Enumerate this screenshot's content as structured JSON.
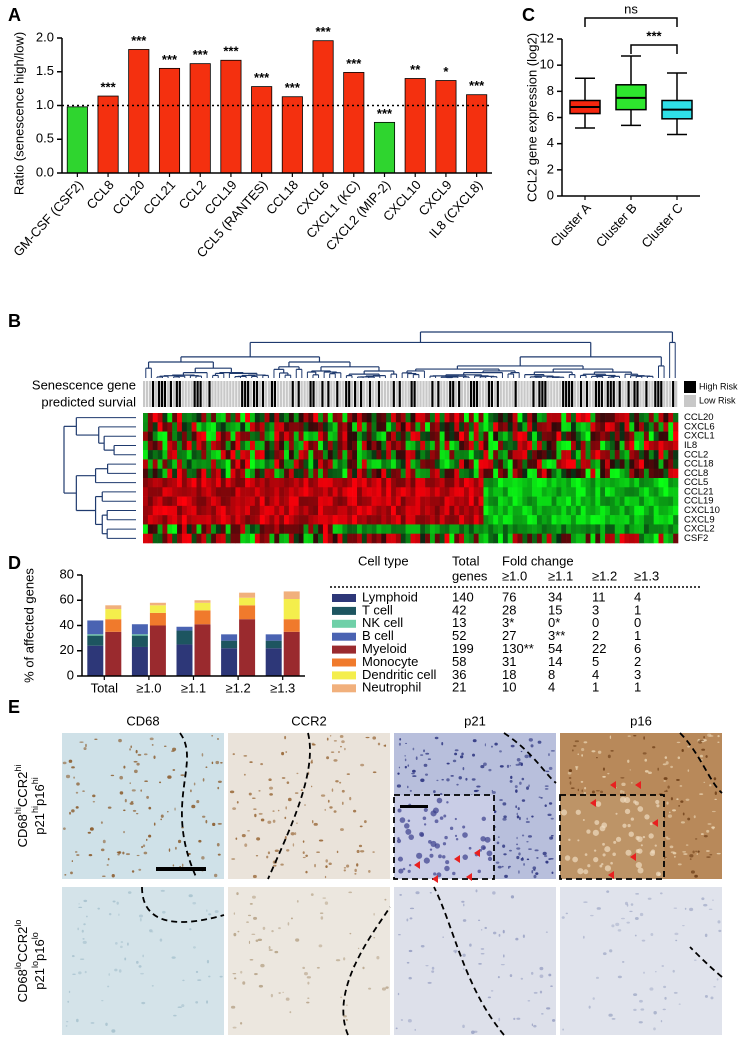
{
  "chart_data": [
    {
      "panel": "A",
      "type": "bar",
      "y_label": "Ratio (senescence high/low)",
      "categories": [
        "GM-CSF (CSF2)",
        "CCL8",
        "CCL20",
        "CCL21",
        "CCL2",
        "CCL19",
        "CCL5 (RANTES)",
        "CCL18",
        "CXCL6",
        "CXCL1 (KC)",
        "CXCL2 (MIP-2)",
        "CXCL10",
        "CXCL9",
        "IL8 (CXCL8)"
      ],
      "values": [
        0.98,
        1.14,
        1.83,
        1.55,
        1.62,
        1.67,
        1.28,
        1.13,
        1.96,
        1.49,
        0.75,
        1.4,
        1.37,
        1.16
      ],
      "colors": [
        "#2fd52f",
        "#f4300f",
        "#f4300f",
        "#f4300f",
        "#f4300f",
        "#f4300f",
        "#f4300f",
        "#f4300f",
        "#f4300f",
        "#f4300f",
        "#2fd52f",
        "#f4300f",
        "#f4300f",
        "#f4300f"
      ],
      "significance": [
        null,
        "***",
        "***",
        "***",
        "***",
        "***",
        "***",
        "***",
        "***",
        "***",
        "***",
        "**",
        "*",
        "***"
      ],
      "ylim": [
        0,
        2
      ],
      "yticks": [
        {
          "value": 0,
          "label": "0.0"
        },
        0.5,
        {
          "value": 1,
          "label": "1.0"
        },
        1.5,
        {
          "value": 2,
          "label": "2.0"
        }
      ],
      "reference_line": 1
    },
    {
      "panel": "C",
      "type": "box",
      "y_label": "CCL2 gene expression (log2)",
      "categories": [
        "Cluster A",
        "Cluster B",
        "Cluster C"
      ],
      "colors": [
        "#f4260e",
        "#2ee62e",
        "#2fe0e8"
      ],
      "boxes": [
        {
          "min": 5.2,
          "q1": 6.3,
          "median": 6.8,
          "q3": 7.3,
          "max": 9.0
        },
        {
          "min": 5.4,
          "q1": 6.6,
          "median": 7.5,
          "q3": 8.5,
          "max": 10.7
        },
        {
          "min": 4.7,
          "q1": 5.9,
          "median": 6.6,
          "q3": 7.3,
          "max": 9.4
        }
      ],
      "ylim": [
        0,
        12
      ],
      "yticks": [
        0,
        2,
        4,
        6,
        8,
        10,
        12
      ],
      "comparisons": [
        {
          "label": "ns",
          "pair": [
            0,
            2
          ]
        },
        {
          "label": "***",
          "pair": [
            1,
            2
          ]
        }
      ]
    },
    {
      "panel": "D",
      "type": "stacked-bar",
      "y_label": "% of affected genes",
      "categories": [
        "Total",
        "≥1.0",
        "≥1.1",
        "≥1.2",
        "≥1.3"
      ],
      "stacks": [
        [
          {
            "name": "Lymphoid",
            "color": "#2d3778",
            "values": [
              24,
              23,
              25,
              22,
              22
            ]
          },
          {
            "name": "T cell",
            "color": "#1d5560",
            "values": [
              8,
              9,
              11,
              6,
              6
            ]
          },
          {
            "name": "NK cell",
            "color": "#6fd0a8",
            "values": [
              1,
              1,
              0,
              0,
              0
            ]
          },
          {
            "name": "B cell",
            "color": "#4a63b2",
            "values": [
              11,
              8,
              3,
              5,
              5
            ]
          }
        ],
        [
          {
            "name": "Myeloid",
            "color": "#9a2a2e",
            "values": [
              35,
              40,
              41,
              45,
              35
            ]
          },
          {
            "name": "Monocyte",
            "color": "#f07a2c",
            "values": [
              10,
              10,
              11,
              11,
              10
            ]
          },
          {
            "name": "Dendritic cell",
            "color": "#f4ee4c",
            "values": [
              8,
              6,
              6,
              6,
              16
            ]
          },
          {
            "name": "Neutrophil",
            "color": "#f1b07c",
            "values": [
              3,
              2,
              2,
              4,
              6
            ]
          }
        ]
      ],
      "ylim": [
        0,
        80
      ],
      "yticks": [
        0,
        20,
        40,
        60,
        80
      ]
    }
  ],
  "table": {
    "cell_type": "Cell type",
    "total": [
      "Total",
      "genes"
    ],
    "fold_change": "Fold change",
    "thresholds": [
      "≥1.0",
      "≥1.1",
      "≥1.2",
      "≥1.3"
    ],
    "rows": [
      [
        "140",
        "76",
        "34",
        "11",
        "4"
      ],
      [
        "42",
        "28",
        "15",
        "3",
        "1"
      ],
      [
        "13",
        {
          "text": "3*",
          "color": "#1f3fd8"
        },
        {
          "text": "0*",
          "color": "#1f3fd8"
        },
        "0",
        "0"
      ],
      [
        "52",
        "27",
        {
          "text": "3**",
          "color": "#1f3fd8"
        },
        "2",
        "1"
      ],
      [
        "199",
        {
          "text": "130**",
          "color": "#e8200c"
        },
        "54",
        "22",
        "6"
      ],
      [
        "58",
        "31",
        "14",
        "5",
        "2"
      ],
      [
        "36",
        "18",
        "8",
        "4",
        "3"
      ],
      [
        "21",
        "10",
        "4",
        "1",
        "1"
      ]
    ]
  },
  "heatmap": {
    "panel": "B",
    "side_label": [
      "Senescence gene",
      "predicted survial"
    ],
    "legend": [
      {
        "name": "High Risk",
        "color": "#000000"
      },
      {
        "name": "Low Risk",
        "color": "#c8c8c8"
      }
    ],
    "genes": [
      "CCL20",
      "CXCL6",
      "CXCL1",
      "IL8",
      "CCL2",
      "CCL18",
      "CCL8",
      "CCL5",
      "CCL21",
      "CCL19",
      "CXCL10",
      "CXCL9",
      "CXCL2",
      "CSF2"
    ]
  },
  "images": {
    "panel": "E",
    "columns": [
      "CD68",
      "CCR2",
      "p21",
      "p16"
    ],
    "rows": [
      [
        [
          "CD68",
          "hi",
          "CCR2",
          "hi"
        ],
        [
          "p21",
          "hi",
          "p16",
          "hi"
        ]
      ],
      [
        [
          "CD68",
          "lo",
          "CCR2",
          "lo"
        ],
        [
          "p21",
          "lo",
          "p16",
          "lo"
        ]
      ]
    ]
  }
}
